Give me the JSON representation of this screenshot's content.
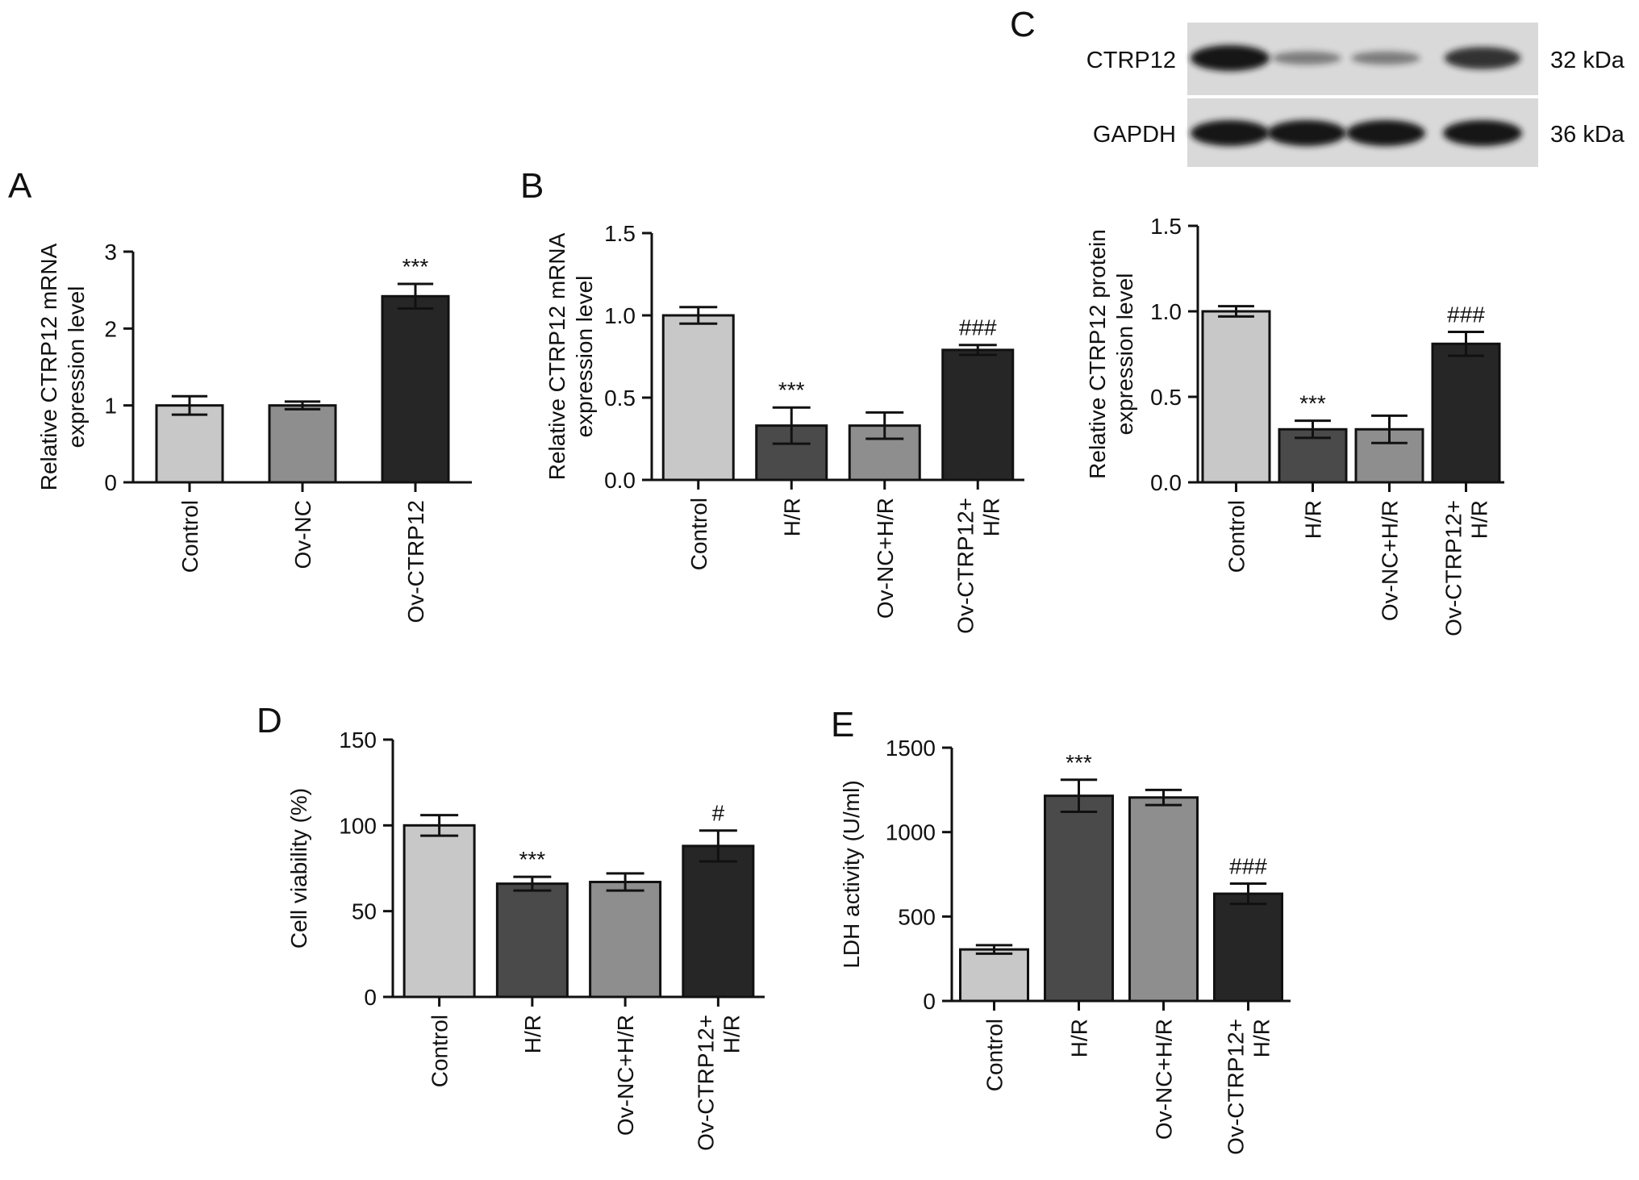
{
  "panel_labels": {
    "A": "A",
    "B": "B",
    "C": "C",
    "D": "D",
    "E": "E"
  },
  "western_blot": {
    "rows": [
      {
        "protein": "CTRP12",
        "size": "32 kDa",
        "band_intensity": [
          1.0,
          0.3,
          0.3,
          0.8
        ]
      },
      {
        "protein": "GAPDH",
        "size": "36 kDa",
        "band_intensity": [
          1.0,
          1.0,
          1.0,
          1.0
        ]
      }
    ],
    "colors": {
      "background": "#d9d9d9",
      "band": "#141414"
    }
  },
  "chart_data": [
    {
      "id": "A",
      "type": "bar",
      "ylabel": [
        "Relative CTRP12 mRNA",
        "expression level"
      ],
      "categories": [
        [
          "Control"
        ],
        [
          "Ov-NC"
        ],
        [
          "Ov-CTRP12"
        ]
      ],
      "values": [
        1.0,
        1.0,
        2.42
      ],
      "errors": [
        0.12,
        0.05,
        0.16
      ],
      "annotations": [
        "",
        "",
        "***"
      ],
      "colors": [
        "#c8c8c8",
        "#8e8e8e",
        "#262626"
      ],
      "ylim": [
        0,
        3
      ],
      "yticks": [
        0,
        1,
        2,
        3
      ],
      "ytick_labels": [
        "0",
        "1",
        "2",
        "3"
      ]
    },
    {
      "id": "B",
      "type": "bar",
      "ylabel": [
        "Relative CTRP12 mRNA",
        "expression level"
      ],
      "categories": [
        [
          "Control"
        ],
        [
          "H/R"
        ],
        [
          "Ov-NC+H/R"
        ],
        [
          "Ov-CTRP12+",
          "H/R"
        ]
      ],
      "values": [
        1.0,
        0.33,
        0.33,
        0.79
      ],
      "errors": [
        0.05,
        0.11,
        0.08,
        0.03
      ],
      "annotations": [
        "",
        "***",
        "",
        "###"
      ],
      "colors": [
        "#c8c8c8",
        "#4a4a4a",
        "#8e8e8e",
        "#262626"
      ],
      "ylim": [
        0,
        1.5
      ],
      "yticks": [
        0,
        0.5,
        1.0,
        1.5
      ],
      "ytick_labels": [
        "0.0",
        "0.5",
        "1.0",
        "1.5"
      ]
    },
    {
      "id": "C",
      "type": "bar",
      "ylabel": [
        "Relative CTRP12 protein",
        "expression level"
      ],
      "categories": [
        [
          "Control"
        ],
        [
          "H/R"
        ],
        [
          "Ov-NC+H/R"
        ],
        [
          "Ov-CTRP12+",
          "H/R"
        ]
      ],
      "values": [
        1.0,
        0.31,
        0.31,
        0.81
      ],
      "errors": [
        0.03,
        0.05,
        0.08,
        0.07
      ],
      "annotations": [
        "",
        "***",
        "",
        "###"
      ],
      "colors": [
        "#c8c8c8",
        "#4a4a4a",
        "#8e8e8e",
        "#262626"
      ],
      "ylim": [
        0,
        1.5
      ],
      "yticks": [
        0,
        0.5,
        1.0,
        1.5
      ],
      "ytick_labels": [
        "0.0",
        "0.5",
        "1.0",
        "1.5"
      ]
    },
    {
      "id": "D",
      "type": "bar",
      "ylabel": [
        "Cell viability (%)"
      ],
      "categories": [
        [
          "Control"
        ],
        [
          "H/R"
        ],
        [
          "Ov-NC+H/R"
        ],
        [
          "Ov-CTRP12+",
          "H/R"
        ]
      ],
      "values": [
        100,
        66,
        67,
        88
      ],
      "errors": [
        6,
        4,
        5,
        9
      ],
      "annotations": [
        "",
        "***",
        "",
        "#"
      ],
      "colors": [
        "#c8c8c8",
        "#4a4a4a",
        "#8e8e8e",
        "#262626"
      ],
      "ylim": [
        0,
        150
      ],
      "yticks": [
        0,
        50,
        100,
        150
      ],
      "ytick_labels": [
        "0",
        "50",
        "100",
        "150"
      ]
    },
    {
      "id": "E",
      "type": "bar",
      "ylabel": [
        "LDH activity (U/ml)"
      ],
      "categories": [
        [
          "Control"
        ],
        [
          "H/R"
        ],
        [
          "Ov-NC+H/R"
        ],
        [
          "Ov-CTRP12+",
          "H/R"
        ]
      ],
      "values": [
        305,
        1215,
        1205,
        635
      ],
      "errors": [
        25,
        95,
        45,
        60
      ],
      "annotations": [
        "",
        "***",
        "",
        "###"
      ],
      "colors": [
        "#c8c8c8",
        "#4a4a4a",
        "#8e8e8e",
        "#262626"
      ],
      "ylim": [
        0,
        1500
      ],
      "yticks": [
        0,
        500,
        1000,
        1500
      ],
      "ytick_labels": [
        "0",
        "500",
        "1000",
        "1500"
      ]
    }
  ]
}
